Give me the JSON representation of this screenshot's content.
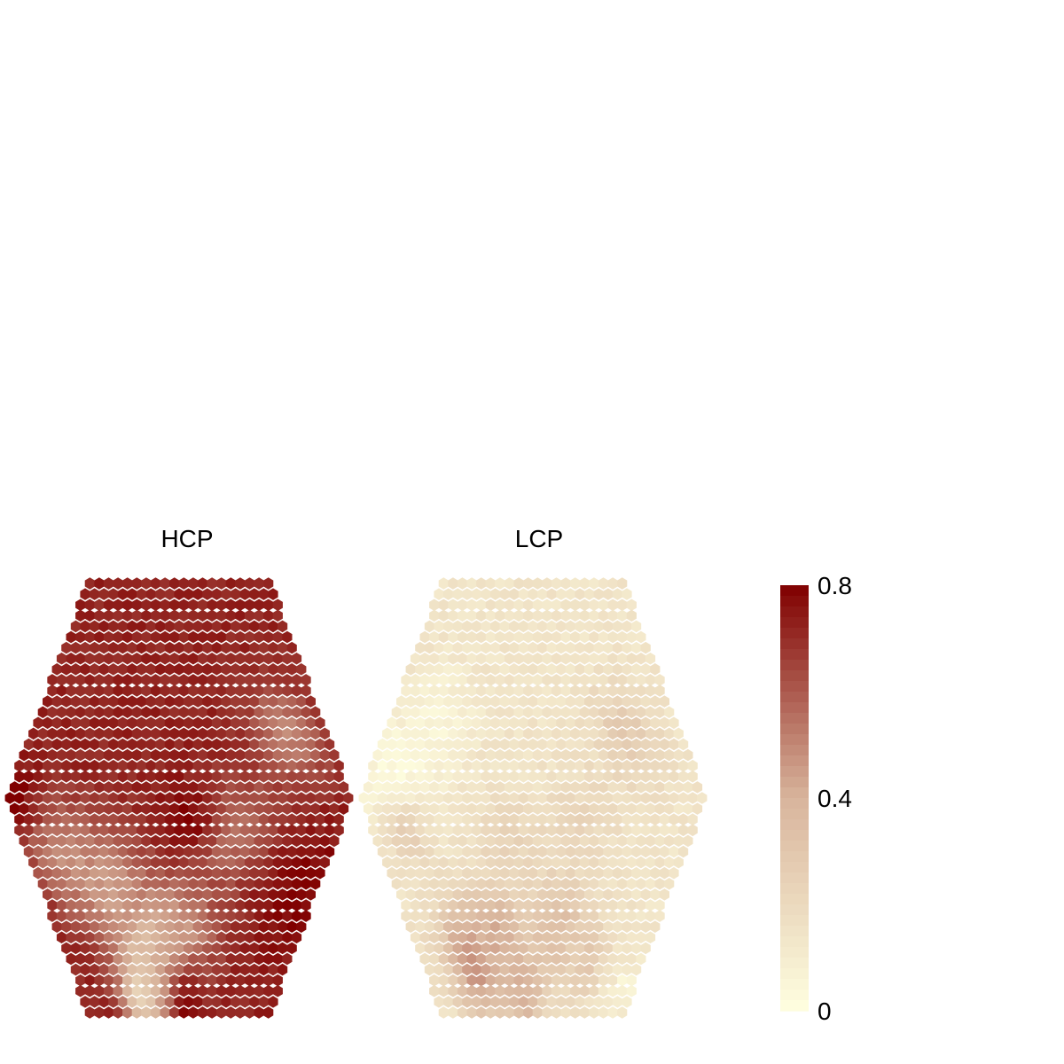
{
  "chart_data": {
    "type": "heatmap",
    "panels": [
      {
        "title": "HCP",
        "rows": 41,
        "base_level": 0.72,
        "features": [
          {
            "u": 0.37,
            "v": 0.86,
            "radius": 0.07,
            "value": 0.18
          },
          {
            "u": 0.31,
            "v": 0.95,
            "radius": 0.08,
            "value": 0.2
          },
          {
            "u": 0.43,
            "v": 0.9,
            "radius": 0.07,
            "value": 0.3
          },
          {
            "u": 0.5,
            "v": 0.85,
            "radius": 0.11,
            "value": 0.4
          },
          {
            "u": 0.12,
            "v": 0.64,
            "radius": 0.09,
            "value": 0.5
          },
          {
            "u": 0.68,
            "v": 0.58,
            "radius": 0.09,
            "value": 0.55
          },
          {
            "u": 0.87,
            "v": 0.35,
            "radius": 0.08,
            "value": 0.5
          },
          {
            "u": 0.25,
            "v": 0.72,
            "radius": 0.1,
            "value": 0.45
          },
          {
            "u": 0.52,
            "v": 0.55,
            "radius": 0.06,
            "value": 0.8
          },
          {
            "u": 0.0,
            "v": 0.5,
            "radius": 0.05,
            "value": 0.82
          },
          {
            "u": 0.55,
            "v": 0.98,
            "radius": 0.08,
            "value": 0.78
          },
          {
            "u": 0.95,
            "v": 0.72,
            "radius": 0.1,
            "value": 0.8
          }
        ]
      },
      {
        "title": "LCP",
        "rows": 41,
        "base_level": 0.14,
        "features": [
          {
            "u": 0.22,
            "v": 0.88,
            "radius": 0.09,
            "value": 0.5
          },
          {
            "u": 0.35,
            "v": 0.82,
            "radius": 0.08,
            "value": 0.42
          },
          {
            "u": 0.6,
            "v": 0.8,
            "radius": 0.09,
            "value": 0.35
          },
          {
            "u": 0.45,
            "v": 0.95,
            "radius": 0.08,
            "value": 0.4
          },
          {
            "u": 0.75,
            "v": 0.88,
            "radius": 0.06,
            "value": 0.3
          },
          {
            "u": 0.08,
            "v": 0.45,
            "radius": 0.1,
            "value": 0.02
          },
          {
            "u": 0.15,
            "v": 0.32,
            "radius": 0.08,
            "value": 0.05
          },
          {
            "u": 0.97,
            "v": 0.95,
            "radius": 0.05,
            "value": 0.06
          },
          {
            "u": 0.82,
            "v": 0.35,
            "radius": 0.08,
            "value": 0.28
          },
          {
            "u": 0.65,
            "v": 0.55,
            "radius": 0.08,
            "value": 0.22
          },
          {
            "u": 0.42,
            "v": 0.6,
            "radius": 0.07,
            "value": 0.24
          },
          {
            "u": 0.1,
            "v": 0.58,
            "radius": 0.06,
            "value": 0.25
          }
        ]
      }
    ],
    "colorbar": {
      "min": 0,
      "max": 0.8,
      "ticks": [
        "0.8",
        "0.4",
        "0"
      ],
      "low_color": "#FFFFE0",
      "mid_color": "#D8B49C",
      "high_color": "#800000"
    }
  }
}
